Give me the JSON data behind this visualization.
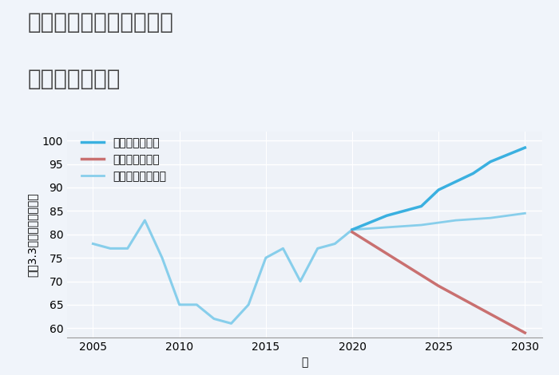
{
  "title_line1": "大阪府大阪市港区弁天の",
  "title_line2": "土地の価格推移",
  "xlabel": "年",
  "ylabel": "坪（3.3㎡）単価（万円）",
  "background_color": "#f0f4fa",
  "plot_bg_color": "#eef2f8",
  "xlim": [
    2003.5,
    2031
  ],
  "ylim": [
    58,
    102
  ],
  "yticks": [
    60,
    65,
    70,
    75,
    80,
    85,
    90,
    95,
    100
  ],
  "xticks": [
    2005,
    2010,
    2015,
    2020,
    2025,
    2030
  ],
  "historical": {
    "x": [
      2005,
      2006,
      2007,
      2008,
      2009,
      2010,
      2011,
      2012,
      2013,
      2014,
      2015,
      2016,
      2017,
      2018,
      2019,
      2020
    ],
    "y": [
      78,
      77,
      77,
      83,
      75,
      65,
      65,
      62,
      61,
      65,
      75,
      77,
      70,
      77,
      78,
      81
    ],
    "color": "#87ceeb",
    "linewidth": 2.2
  },
  "good": {
    "x": [
      2020,
      2022,
      2024,
      2025,
      2027,
      2028,
      2030
    ],
    "y": [
      81,
      84,
      86,
      89.5,
      93,
      95.5,
      98.5
    ],
    "color": "#3ab0e0",
    "linewidth": 2.5,
    "label": "グッドシナリオ"
  },
  "bad": {
    "x": [
      2020,
      2025,
      2030
    ],
    "y": [
      80.5,
      69,
      59
    ],
    "color": "#c97070",
    "linewidth": 2.5,
    "label": "バッドシナリオ"
  },
  "normal_future": {
    "x": [
      2020,
      2022,
      2024,
      2025,
      2026,
      2028,
      2030
    ],
    "y": [
      81,
      81.5,
      82,
      82.5,
      83,
      83.5,
      84.5
    ],
    "color": "#87ceeb",
    "linewidth": 2.0,
    "label": "ノーマルシナリオ"
  },
  "title_fontsize": 20,
  "axis_label_fontsize": 10,
  "tick_fontsize": 10,
  "legend_fontsize": 10
}
